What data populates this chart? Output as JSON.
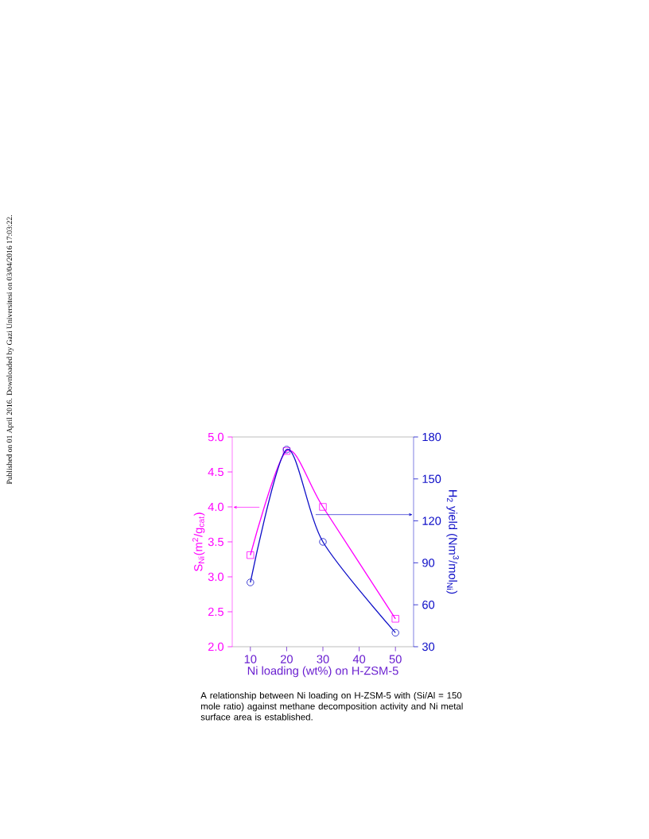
{
  "chart_data": {
    "type": "line",
    "xlabel": "Ni loading (wt%) on H-ZSM-5",
    "ylabel": "S$_{Ni}$(m$^{2}$/g$_{cat}$)",
    "y2label": "H$_{2}$ yield (Nm$^{3}$/mol$_{Ni}$)",
    "x": [
      10,
      20,
      30,
      50
    ],
    "xlim": [
      5,
      55
    ],
    "xticks": [
      10,
      20,
      30,
      40,
      50
    ],
    "ylim": [
      2.0,
      5.0
    ],
    "yticks": [
      {
        "value": 2.0,
        "label": "2.0"
      },
      {
        "value": 2.5,
        "label": "2.5"
      },
      {
        "value": 3.0,
        "label": "3.0"
      },
      {
        "value": 3.5,
        "label": "3.5"
      },
      {
        "value": 4.0,
        "label": "4.0"
      },
      {
        "value": 4.5,
        "label": "4.5"
      },
      {
        "value": 5.0,
        "label": "5.0"
      }
    ],
    "y2lim": [
      30,
      180
    ],
    "y2ticks": [
      30,
      60,
      90,
      120,
      150,
      180
    ],
    "series": [
      {
        "color": "#ff00ff",
        "marker": "square",
        "values": [
          3.31,
          4.8,
          4.0,
          2.4
        ]
      },
      {
        "color": "#1010c8",
        "marker": "circle",
        "axis": "y2",
        "values": [
          76,
          171,
          105,
          40
        ]
      }
    ],
    "annotations": [
      "A relationship between Ni loading on H-ZSM-5 with (Si/Al = 150 mole ratio) against methane decomposition activity and Ni metal surface area is established.",
      "Published on 01 April 2016. Downloaded by Gazi Universitesi on 03/04/2016 17:03:22."
    ]
  }
}
